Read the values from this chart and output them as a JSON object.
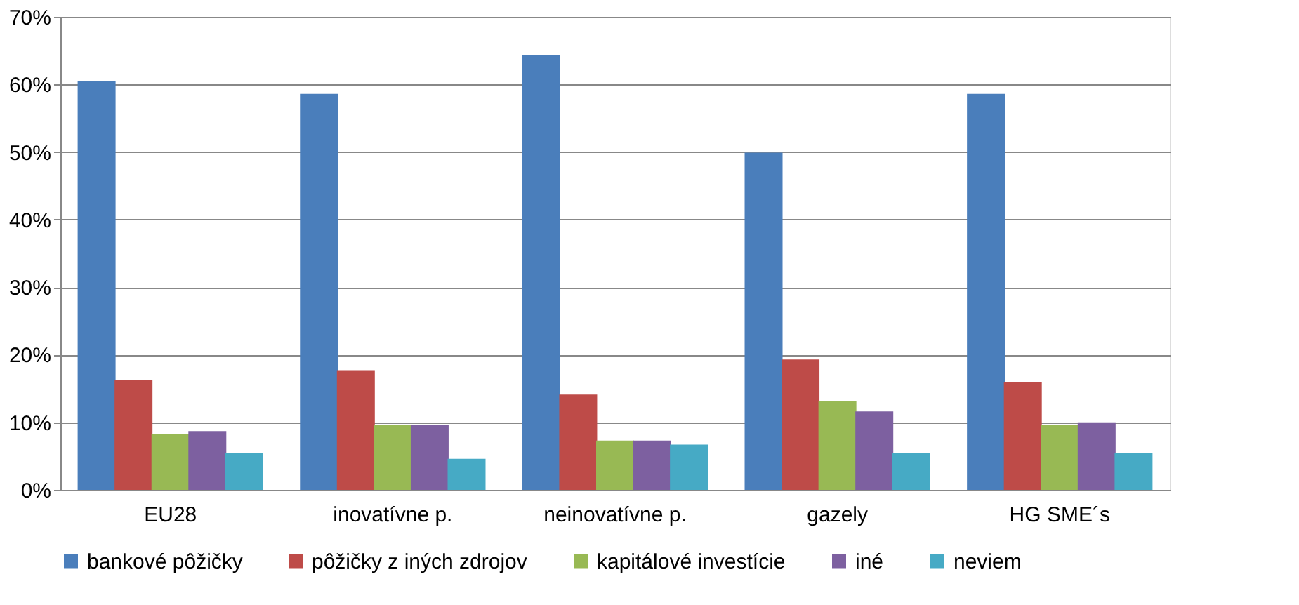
{
  "chart_data": {
    "type": "bar",
    "categories": [
      "EU28",
      "inovatívne p.",
      "neinovatívne p.",
      "gazely",
      "HG SME´s"
    ],
    "series": [
      {
        "name": "bankové pôžičky",
        "color": "#4a7ebb",
        "values": [
          60.5,
          58.6,
          64.4,
          49.9,
          58.6
        ]
      },
      {
        "name": "pôžičky z iných zdrojov",
        "color": "#be4b48",
        "values": [
          16.2,
          17.7,
          14.1,
          19.3,
          16.0
        ]
      },
      {
        "name": "kapitálové investície",
        "color": "#98b954",
        "values": [
          8.3,
          9.6,
          7.3,
          13.1,
          9.6
        ]
      },
      {
        "name": "iné",
        "color": "#7d60a0",
        "values": [
          8.7,
          9.6,
          7.3,
          11.6,
          10.0
        ]
      },
      {
        "name": "neviem",
        "color": "#46aac5",
        "values": [
          5.4,
          4.6,
          6.7,
          5.4,
          5.4
        ]
      }
    ],
    "ylim": [
      0,
      70
    ],
    "yticks": [
      {
        "value": 0,
        "label": "0%"
      },
      {
        "value": 10,
        "label": "10%"
      },
      {
        "value": 20,
        "label": "20%"
      },
      {
        "value": 30,
        "label": "30%"
      },
      {
        "value": 40,
        "label": "40%"
      },
      {
        "value": 50,
        "label": "50%"
      },
      {
        "value": 60,
        "label": "60%"
      },
      {
        "value": 70,
        "label": "70%"
      }
    ],
    "grid": "y",
    "legend": "bottom"
  }
}
